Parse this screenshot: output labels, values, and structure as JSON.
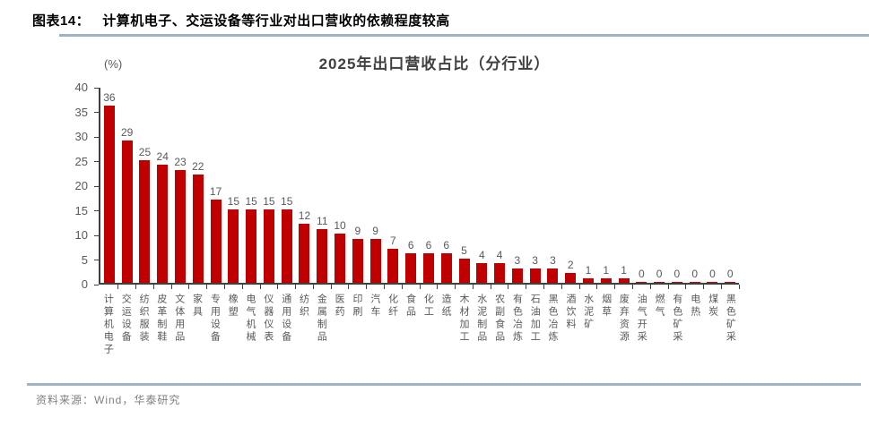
{
  "header": {
    "figure_label": "图表14：",
    "figure_title": "计算机电子、交运设备等行业对出口营收的依赖程度较高"
  },
  "chart_data": {
    "type": "bar",
    "title": "2025年出口营收占比（分行业）",
    "unit": "(%)",
    "categories": [
      "计算机电子",
      "交运设备",
      "纺织服装",
      "皮革制鞋",
      "文体用品",
      "家具",
      "专用设备",
      "橡塑",
      "电气机械",
      "仪器仪表",
      "通用设备",
      "纺织",
      "金属制品",
      "医药",
      "印刷",
      "汽车",
      "化纤",
      "食品",
      "化工",
      "造纸",
      "木材加工",
      "水泥制品",
      "农副食品",
      "有色冶炼",
      "石油加工",
      "黑色冶炼",
      "酒饮料",
      "水泥矿",
      "烟草",
      "废弃资源",
      "油气开采",
      "燃气",
      "有色矿采",
      "电热",
      "煤炭",
      "黑色矿采"
    ],
    "values": [
      36,
      29,
      25,
      24,
      23,
      22,
      17,
      15,
      15,
      15,
      15,
      12,
      11,
      10,
      9,
      9,
      7,
      6,
      6,
      6,
      5,
      4,
      4,
      3,
      3,
      3,
      2,
      1,
      1,
      1,
      0,
      0,
      0,
      0,
      0,
      0
    ],
    "xlabel": "",
    "ylabel": "(%)",
    "ylim": [
      0,
      40
    ],
    "yticks": [
      0,
      5,
      10,
      15,
      20,
      25,
      30,
      35,
      40
    ],
    "bar_color": "#C00000",
    "grid": false,
    "legend": false
  },
  "footer": {
    "source": "资料来源：Wind，华泰研究"
  },
  "colors": {
    "bar": "#C00000",
    "rule": "#9FB3C6",
    "axis": "#404040",
    "text_gray": "#595959",
    "source_gray": "#7F7F7F"
  }
}
